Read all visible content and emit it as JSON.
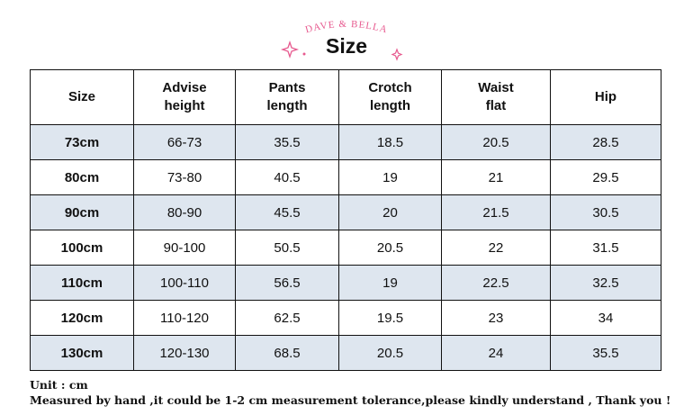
{
  "header": {
    "brand": "DAVE & BELLA",
    "title": "Size"
  },
  "table": {
    "columns": [
      "Size",
      "Advise\nheight",
      "Pants\nlength",
      "Crotch\nlength",
      "Waist\nflat",
      "Hip"
    ],
    "rows": [
      [
        "73cm",
        "66-73",
        "35.5",
        "18.5",
        "20.5",
        "28.5"
      ],
      [
        "80cm",
        "73-80",
        "40.5",
        "19",
        "21",
        "29.5"
      ],
      [
        "90cm",
        "80-90",
        "45.5",
        "20",
        "21.5",
        "30.5"
      ],
      [
        "100cm",
        "90-100",
        "50.5",
        "20.5",
        "22",
        "31.5"
      ],
      [
        "110cm",
        "100-110",
        "56.5",
        "19",
        "22.5",
        "32.5"
      ],
      [
        "120cm",
        "110-120",
        "62.5",
        "19.5",
        "23",
        "34"
      ],
      [
        "130cm",
        "120-130",
        "68.5",
        "20.5",
        "24",
        "35.5"
      ]
    ]
  },
  "footer": {
    "unit": "Unit : cm",
    "note": "Measured by hand ,it could be 1-2 cm measurement tolerance,please kindly understand , Thank you !"
  }
}
